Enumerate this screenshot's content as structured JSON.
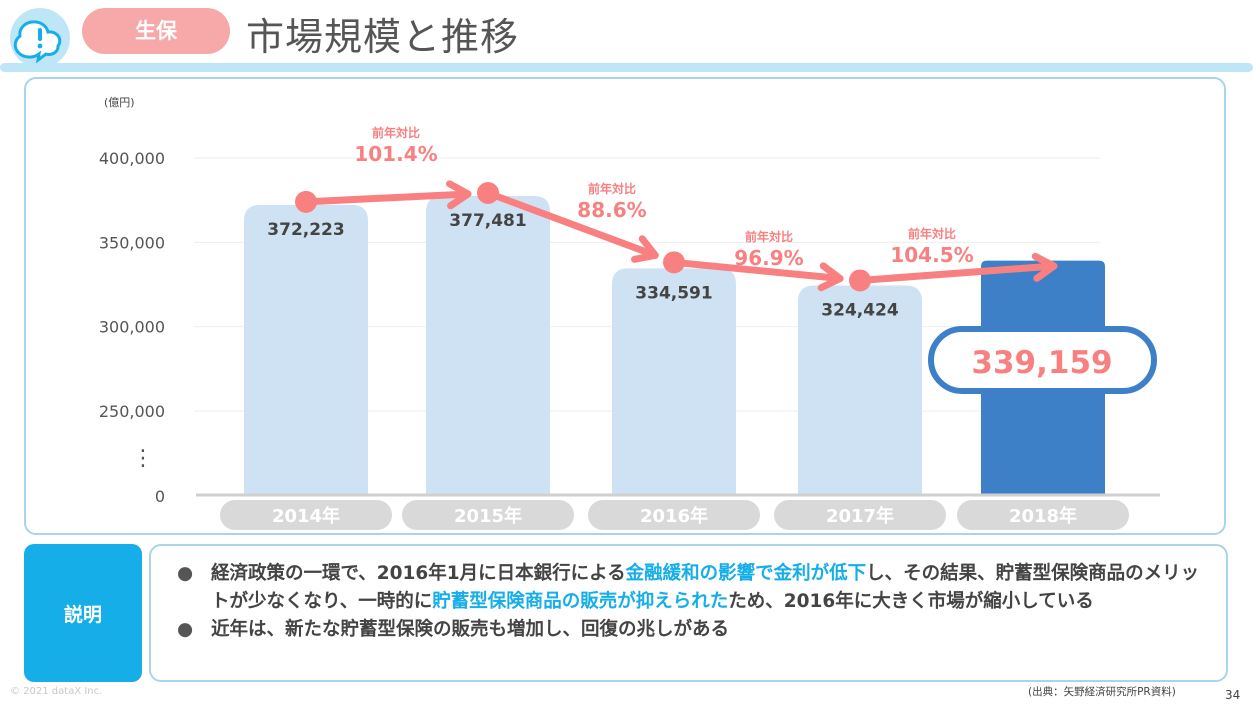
{
  "header": {
    "category": "生保",
    "title": "市場規模と推移"
  },
  "chart_data": {
    "type": "bar",
    "unit_label": "(億円)",
    "categories": [
      "2014年",
      "2015年",
      "2016年",
      "2017年",
      "2018年"
    ],
    "values": [
      372223,
      377481,
      334591,
      324424,
      339159
    ],
    "value_labels": [
      "372,223",
      "377,481",
      "334,591",
      "324,424",
      "339,159"
    ],
    "y_ticks": [
      "400,000",
      "350,000",
      "300,000",
      "250,000",
      "0"
    ],
    "y_break_marker": "⋮",
    "axis_break": true,
    "growth_rates": [
      {
        "label": "前年対比",
        "value": "101.4%"
      },
      {
        "label": "前年対比",
        "value": "88.6%"
      },
      {
        "label": "前年対比",
        "value": "96.9%"
      },
      {
        "label": "前年対比",
        "value": "104.5%"
      }
    ],
    "colors": {
      "bar": "#cfe2f3",
      "highlight_bar": "#3d80c8",
      "trend": "#f98080",
      "category_pill": "#d9d9d9",
      "highlight_value_border": "#3d80c8"
    },
    "highlight_index": 4,
    "grid": true
  },
  "explanation": {
    "label": "説明",
    "bullets": [
      {
        "dot": "●",
        "segments": [
          {
            "text": "経済政策の一環で、2016年1月に日本銀行による",
            "hl": false
          },
          {
            "text": "金融緩和の影響で金利が低下",
            "hl": true
          },
          {
            "text": "し、その結果、貯蓄型保険商品のメリットが少なくなり、一時的に",
            "hl": false
          },
          {
            "text": "貯蓄型保険商品の販売が抑えられた",
            "hl": true
          },
          {
            "text": "ため、2016年に大きく市場が縮小している",
            "hl": false
          }
        ]
      },
      {
        "dot": "●",
        "segments": [
          {
            "text": "近年は、新たな貯蓄型保険の販売も増加し、回復の兆しがある",
            "hl": false
          }
        ]
      }
    ]
  },
  "footer": {
    "copyright": "© 2021 dataX Inc.",
    "source": "(出典：矢野経済研究所PR資料)",
    "page_number": "34"
  }
}
